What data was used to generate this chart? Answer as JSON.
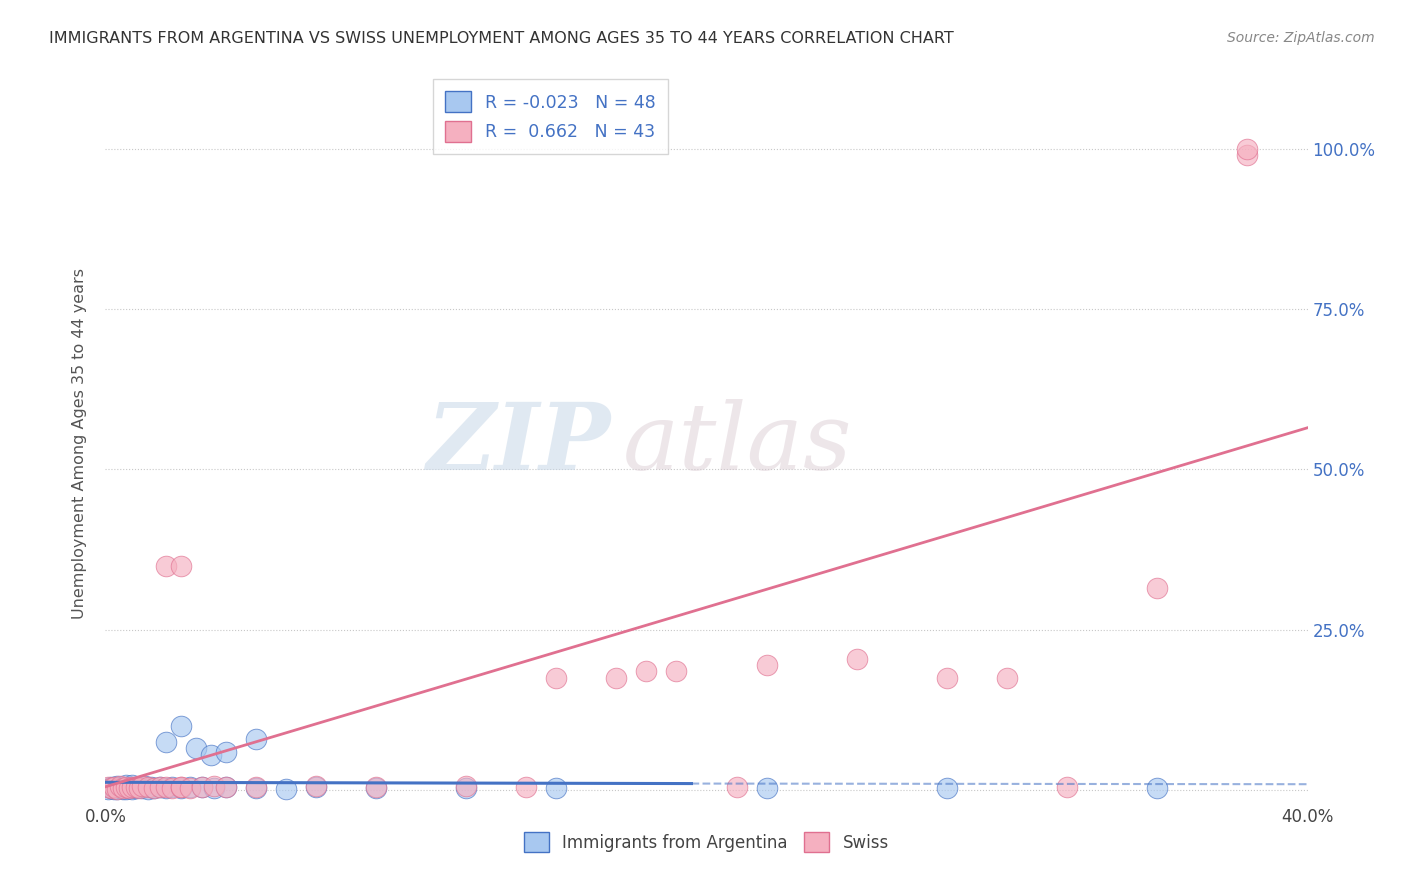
{
  "title": "IMMIGRANTS FROM ARGENTINA VS SWISS UNEMPLOYMENT AMONG AGES 35 TO 44 YEARS CORRELATION CHART",
  "source": "Source: ZipAtlas.com",
  "xlabel_bottom": "Immigrants from Argentina",
  "ylabel": "Unemployment Among Ages 35 to 44 years",
  "xlim": [
    0.0,
    0.4
  ],
  "ylim": [
    -0.02,
    1.1
  ],
  "legend_r1": "R = -0.023",
  "legend_n1": "N = 48",
  "legend_r2": "R =  0.662",
  "legend_n2": "N = 43",
  "color_blue": "#a8c8f0",
  "color_pink": "#f5b0c0",
  "line_color_blue": "#4472c4",
  "line_color_pink": "#e07090",
  "watermark_zip": "ZIP",
  "watermark_atlas": "atlas",
  "blue_x": [
    0.001,
    0.002,
    0.002,
    0.003,
    0.003,
    0.004,
    0.004,
    0.005,
    0.005,
    0.006,
    0.006,
    0.007,
    0.007,
    0.008,
    0.008,
    0.009,
    0.009,
    0.01,
    0.01,
    0.011,
    0.012,
    0.013,
    0.014,
    0.015,
    0.016,
    0.018,
    0.02,
    0.022,
    0.025,
    0.028,
    0.032,
    0.036,
    0.04,
    0.05,
    0.06,
    0.07,
    0.09,
    0.12,
    0.15,
    0.02,
    0.025,
    0.03,
    0.035,
    0.04,
    0.05,
    0.22,
    0.28,
    0.35
  ],
  "blue_y": [
    0.002,
    0.003,
    0.005,
    0.001,
    0.004,
    0.002,
    0.006,
    0.003,
    0.005,
    0.001,
    0.004,
    0.002,
    0.008,
    0.003,
    0.005,
    0.002,
    0.007,
    0.003,
    0.005,
    0.004,
    0.003,
    0.006,
    0.002,
    0.004,
    0.003,
    0.005,
    0.003,
    0.004,
    0.003,
    0.005,
    0.004,
    0.003,
    0.004,
    0.003,
    0.002,
    0.004,
    0.003,
    0.003,
    0.003,
    0.075,
    0.1,
    0.065,
    0.055,
    0.06,
    0.08,
    0.003,
    0.003,
    0.003
  ],
  "pink_x": [
    0.001,
    0.002,
    0.003,
    0.004,
    0.005,
    0.006,
    0.007,
    0.008,
    0.009,
    0.01,
    0.011,
    0.012,
    0.014,
    0.016,
    0.018,
    0.02,
    0.022,
    0.025,
    0.025,
    0.028,
    0.032,
    0.036,
    0.04,
    0.05,
    0.07,
    0.09,
    0.12,
    0.15,
    0.18,
    0.22,
    0.25,
    0.3,
    0.35,
    0.38,
    0.38,
    0.14,
    0.21,
    0.17,
    0.19,
    0.28,
    0.32,
    0.02,
    0.025
  ],
  "pink_y": [
    0.004,
    0.003,
    0.005,
    0.002,
    0.006,
    0.003,
    0.004,
    0.003,
    0.005,
    0.004,
    0.003,
    0.006,
    0.004,
    0.003,
    0.005,
    0.004,
    0.003,
    0.005,
    0.004,
    0.003,
    0.005,
    0.006,
    0.004,
    0.005,
    0.006,
    0.005,
    0.006,
    0.175,
    0.185,
    0.195,
    0.205,
    0.175,
    0.315,
    0.99,
    1.0,
    0.005,
    0.005,
    0.175,
    0.185,
    0.175,
    0.005,
    0.35,
    0.35
  ],
  "blue_trend_x": [
    0.0,
    0.195,
    0.195,
    0.4
  ],
  "blue_trend_y": [
    0.012,
    0.01,
    0.01,
    0.009
  ],
  "blue_trend_solid_end": 0.195,
  "pink_trend_x": [
    0.0,
    0.4
  ],
  "pink_trend_y": [
    0.005,
    0.565
  ]
}
